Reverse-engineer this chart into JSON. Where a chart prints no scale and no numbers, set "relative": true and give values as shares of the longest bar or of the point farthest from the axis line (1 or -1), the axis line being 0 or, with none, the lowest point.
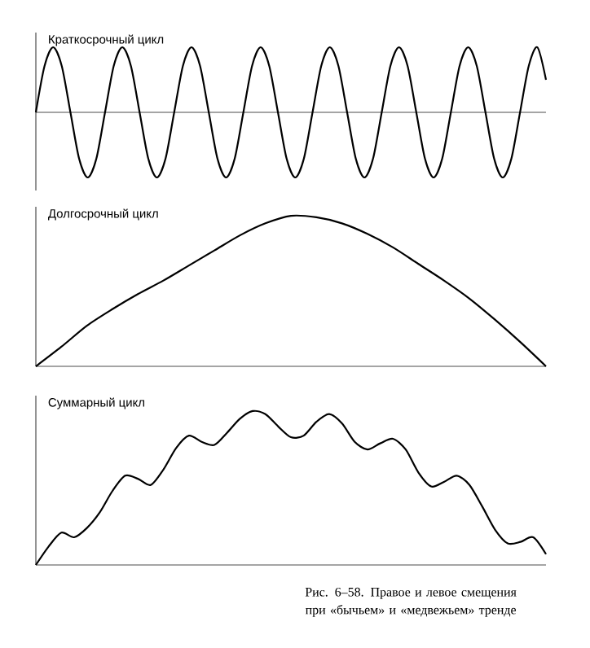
{
  "chart_data": [
    {
      "type": "line",
      "title": "Краткосрочный цикл",
      "relative": true,
      "categories": [
        null,
        null,
        null,
        null,
        null,
        null,
        null,
        null,
        null,
        null,
        null,
        null,
        null,
        null,
        null,
        null,
        null,
        null,
        null,
        null,
        null,
        null,
        null,
        null,
        null,
        null,
        null,
        null,
        null,
        null,
        null,
        null,
        null,
        null,
        null,
        null,
        null,
        null,
        null,
        null,
        null,
        null,
        null,
        null,
        null,
        null,
        null,
        null,
        null,
        null,
        null,
        null,
        null,
        null,
        null,
        null,
        null,
        null,
        null,
        null
      ],
      "series": [
        {
          "color": "#000000",
          "values": [
            0,
            0.71,
            1,
            0.71,
            0,
            -0.71,
            -1,
            -0.71,
            0,
            0.71,
            1,
            0.71,
            0,
            -0.71,
            -1,
            -0.71,
            0,
            0.71,
            1,
            0.71,
            0,
            -0.71,
            -1,
            -0.71,
            0,
            0.71,
            1,
            0.71,
            0,
            -0.71,
            -1,
            -0.71,
            0,
            0.71,
            1,
            0.71,
            0,
            -0.71,
            -1,
            -0.71,
            0,
            0.71,
            1,
            0.71,
            0,
            -0.71,
            -1,
            -0.71,
            0,
            0.71,
            1,
            0.71,
            0,
            -0.71,
            -1,
            -0.71,
            0,
            0.71,
            1,
            0.5
          ]
        }
      ]
    },
    {
      "type": "line",
      "title": "Долгосрочный цикл",
      "relative": true,
      "categories": [
        null,
        null,
        null,
        null,
        null,
        null,
        null,
        null,
        null,
        null,
        null,
        null,
        null,
        null,
        null,
        null,
        null,
        null,
        null,
        null,
        null
      ],
      "series": [
        {
          "color": "#000000",
          "values": [
            0,
            0.13,
            0.27,
            0.38,
            0.48,
            0.57,
            0.67,
            0.77,
            0.87,
            0.95,
            1,
            0.99,
            0.95,
            0.88,
            0.79,
            0.68,
            0.57,
            0.45,
            0.31,
            0.16,
            0
          ]
        }
      ]
    },
    {
      "type": "line",
      "title": "Суммарный цикл",
      "relative": true,
      "categories": [
        null,
        null,
        null,
        null,
        null,
        null,
        null,
        null,
        null,
        null,
        null,
        null,
        null,
        null,
        null,
        null,
        null,
        null,
        null,
        null,
        null,
        null,
        null,
        null,
        null,
        null,
        null,
        null,
        null,
        null,
        null,
        null,
        null,
        null,
        null,
        null,
        null,
        null,
        null,
        null,
        null
      ],
      "series": [
        {
          "color": "#000000",
          "values": [
            0,
            0.12,
            0.21,
            0.18,
            0.24,
            0.34,
            0.48,
            0.58,
            0.56,
            0.52,
            0.62,
            0.76,
            0.84,
            0.8,
            0.78,
            0.86,
            0.95,
            1,
            0.98,
            0.9,
            0.83,
            0.84,
            0.93,
            0.98,
            0.92,
            0.8,
            0.75,
            0.79,
            0.82,
            0.75,
            0.6,
            0.51,
            0.54,
            0.58,
            0.52,
            0.38,
            0.23,
            0.14,
            0.15,
            0.18,
            0.07
          ]
        }
      ],
      "annotations": [
        "Рис. 6–58. Правое и левое смещения при «бычьем» и «медвежьем» тренде"
      ]
    }
  ]
}
